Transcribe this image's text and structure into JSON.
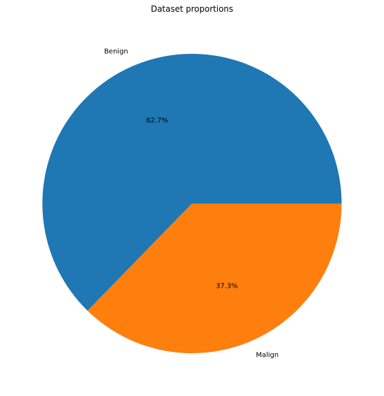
{
  "chart_data": {
    "type": "pie",
    "title": "Dataset proportions",
    "categories": [
      "Benign",
      "Malign"
    ],
    "values": [
      62.7,
      37.3
    ],
    "value_labels": [
      "62.7%",
      "37.3%"
    ],
    "colors": [
      "#1f77b4",
      "#ff7f0e"
    ],
    "start_angle": 0,
    "direction": "counterclockwise",
    "legend": "none"
  }
}
